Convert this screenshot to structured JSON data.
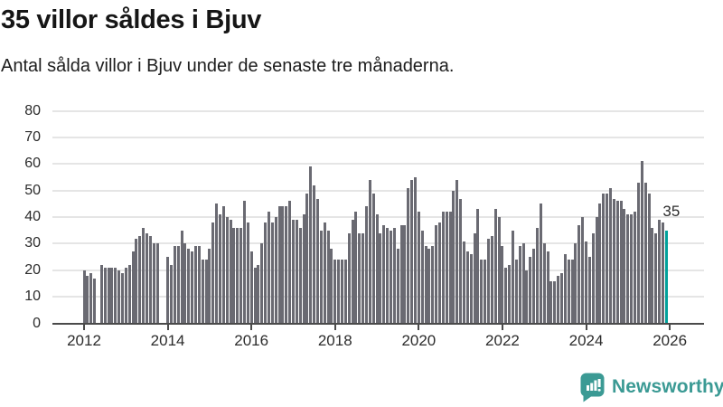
{
  "header": {
    "title": "35 villor såldes i Bjuv",
    "subtitle": "Antal sålda villor i Bjuv under de senaste tre månaderna."
  },
  "annotation": {
    "last_value_label": "35"
  },
  "branding": {
    "name": "Newsworthy",
    "icon": "bar-chart-speech-bubble-icon"
  },
  "colors": {
    "bar": "#6a6a72",
    "highlight": "#00a19b",
    "grid": "#e5e5e5",
    "axis": "#4a4a4a",
    "label": "#2c2c2c",
    "title": "#161616",
    "brand": "#3b9a94"
  },
  "chart_data": {
    "type": "bar",
    "title": "35 villor såldes i Bjuv",
    "xlabel": "",
    "ylabel": "",
    "frequency": "monthly",
    "first_bar": "2012",
    "y_ticks": [
      0,
      10,
      20,
      30,
      40,
      50,
      60,
      70,
      80
    ],
    "ylim": [
      0,
      80
    ],
    "x_tick_labels": [
      "2012",
      "2014",
      "2016",
      "2018",
      "2020",
      "2022",
      "2024",
      "2026"
    ],
    "months_per_x_tick": 24,
    "grid": "horizontal",
    "highlight_last_bar": true,
    "values": [
      20,
      18,
      19,
      17,
      0,
      22,
      21,
      21,
      21,
      21,
      20,
      19,
      21,
      22,
      27,
      32,
      33,
      36,
      34,
      33,
      30,
      30,
      0,
      0,
      25,
      22,
      29,
      29,
      35,
      30,
      28,
      27,
      29,
      29,
      24,
      24,
      28,
      38,
      45,
      41,
      44,
      40,
      39,
      36,
      36,
      36,
      46,
      38,
      27,
      21,
      22,
      30,
      38,
      42,
      38,
      40,
      44,
      44,
      44,
      46,
      39,
      39,
      36,
      41,
      49,
      59,
      52,
      47,
      35,
      38,
      35,
      28,
      24,
      24,
      24,
      24,
      34,
      39,
      42,
      34,
      34,
      44,
      54,
      49,
      41,
      34,
      37,
      36,
      35,
      36,
      28,
      37,
      37,
      51,
      54,
      55,
      42,
      35,
      29,
      28,
      29,
      37,
      38,
      42,
      42,
      42,
      50,
      54,
      47,
      31,
      27,
      26,
      34,
      43,
      24,
      24,
      32,
      33,
      43,
      40,
      29,
      21,
      22,
      35,
      24,
      29,
      30,
      20,
      25,
      28,
      36,
      45,
      30,
      27,
      16,
      16,
      18,
      19,
      26,
      24,
      24,
      30,
      37,
      40,
      31,
      25,
      34,
      40,
      45,
      49,
      49,
      51,
      47,
      46,
      46,
      43,
      41,
      41,
      42,
      53,
      61,
      53,
      49,
      36,
      34,
      39,
      38,
      35
    ]
  }
}
